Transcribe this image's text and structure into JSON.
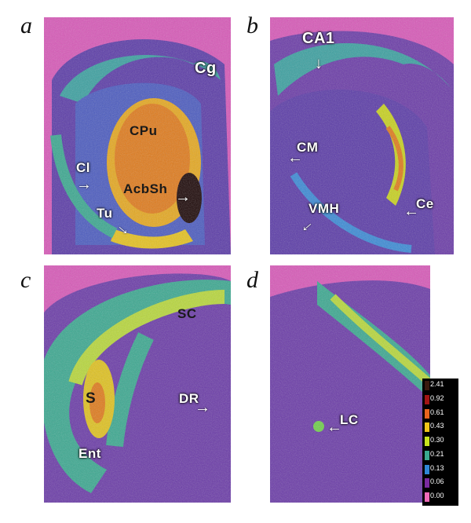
{
  "panels": [
    {
      "letter": "a",
      "labels": {
        "cg": "Cg",
        "cpu": "CPu",
        "cl": "Cl",
        "acbsh": "AcbSh",
        "tu": "Tu"
      }
    },
    {
      "letter": "b",
      "labels": {
        "ca1": "CA1",
        "cm": "CM",
        "vmh": "VMH",
        "ce": "Ce"
      }
    },
    {
      "letter": "c",
      "labels": {
        "sc": "SC",
        "s": "S",
        "dr": "DR",
        "ent": "Ent"
      }
    },
    {
      "letter": "d",
      "labels": {
        "lc": "LC"
      }
    }
  ],
  "colorscale": {
    "ticks": [
      "2.41",
      "0.92",
      "0.61",
      "0.43",
      "0.30",
      "0.21",
      "0.13",
      "0.06",
      "0.00"
    ],
    "colors": [
      "#3a1a0e",
      "#a01414",
      "#e8651e",
      "#f0c419",
      "#c8e21e",
      "#3aa890",
      "#2f86d6",
      "#7b2aa0",
      "#f06ab8"
    ]
  },
  "palette": {
    "background": "#7a2f95",
    "low": "#e84cc0",
    "blue": "#3a6fd6",
    "teal": "#2fa8a0",
    "green": "#6fcf4a",
    "yellow": "#f2dc2a",
    "orange": "#e5781c",
    "red": "#b0200e",
    "black": "#1a0505"
  }
}
